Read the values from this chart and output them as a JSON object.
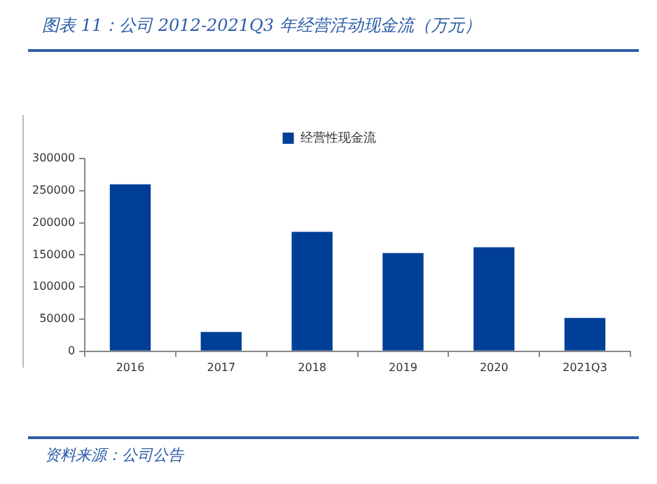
{
  "chart_data": {
    "type": "bar",
    "title": "图表 11：公司 2012-2021Q3 年经营活动现金流（万元）",
    "categories": [
      "2016",
      "2017",
      "2018",
      "2019",
      "2020",
      "2021Q3"
    ],
    "series": [
      {
        "name": "经营性现金流",
        "color": "#003f98",
        "values": [
          260000,
          30000,
          186000,
          153000,
          162000,
          52000
        ]
      }
    ],
    "ylim": [
      0,
      300000
    ],
    "yticks": [
      0,
      50000,
      100000,
      150000,
      200000,
      250000,
      300000
    ],
    "grid": false,
    "legend": "top",
    "annotations": [
      "资料来源：公司公告"
    ]
  }
}
